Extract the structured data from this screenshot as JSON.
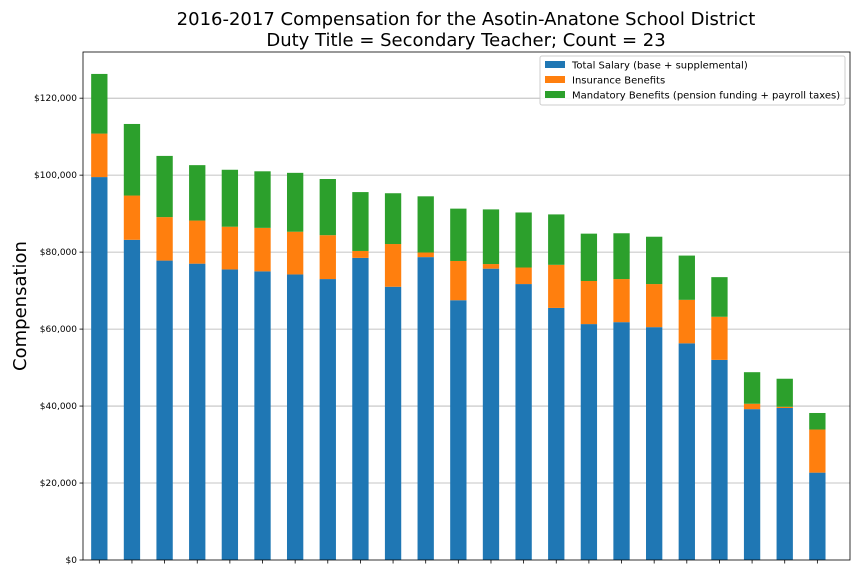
{
  "chart_data": {
    "type": "bar",
    "stacked": true,
    "title": "2016-2017 Compensation for the Asotin-Anatone School District",
    "subtitle": "Duty Title = Secondary Teacher; Count = 23",
    "xlabel": "",
    "ylabel": "Compensation",
    "ylim": [
      0,
      132000
    ],
    "yticks": [
      0,
      20000,
      40000,
      60000,
      80000,
      100000,
      120000
    ],
    "ytick_labels": [
      "$0",
      "$20,000",
      "$40,000",
      "$60,000",
      "$80,000",
      "$100,000",
      "$120,000"
    ],
    "grid": "y",
    "legend_position": "top-right",
    "series": [
      {
        "name": "Total Salary (base + supplemental)",
        "color": "#1f77b4",
        "values": [
          99500,
          83200,
          77800,
          77000,
          75500,
          75000,
          74200,
          73000,
          78500,
          71000,
          78700,
          67500,
          75700,
          71700,
          65500,
          61300,
          61800,
          60500,
          56300,
          52000,
          39200,
          39500,
          22700
        ]
      },
      {
        "name": "Insurance Benefits",
        "color": "#ff7f0e",
        "values": [
          11300,
          11500,
          11300,
          11200,
          11100,
          11300,
          11100,
          11400,
          1800,
          11100,
          1200,
          10200,
          1200,
          4300,
          11200,
          11200,
          11200,
          11200,
          11300,
          11200,
          1400,
          300,
          11200
        ]
      },
      {
        "name": "Mandatory Benefits (pension funding + payroll taxes)",
        "color": "#2ca02c",
        "values": [
          15500,
          18600,
          15900,
          14400,
          14800,
          14700,
          15300,
          14600,
          15300,
          13200,
          14600,
          13600,
          14200,
          14300,
          13100,
          12300,
          11900,
          12300,
          11500,
          10300,
          8200,
          7300,
          4300
        ]
      }
    ]
  }
}
